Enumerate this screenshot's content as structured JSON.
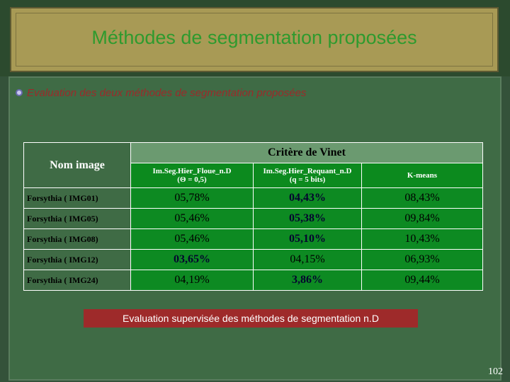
{
  "slide": {
    "title": "Méthodes de segmentation proposées",
    "bullet": "Evaluation des deux méthodes de segmentation proposées",
    "caption": "Evaluation  supervisée des méthodes de segmentation n.D",
    "page_number": "102"
  },
  "table": {
    "col_name_header": "Nom image",
    "group_header": "Critère de Vinet",
    "methods": [
      {
        "line1": "Im.Seg.Hier_Floue_n.D",
        "line2": "(Θ = 0,5)"
      },
      {
        "line1": "Im.Seg.Hier_Requant_n.D",
        "line2": "(q = 5 bits)"
      },
      {
        "line1": "K-means",
        "line2": ""
      }
    ],
    "rows": [
      {
        "name": "Forsythia ( IMG01)",
        "v": [
          "05,78%",
          "04,43%",
          "08,43%"
        ]
      },
      {
        "name": "Forsythia ( IMG05)",
        "v": [
          "05,46%",
          "05,38%",
          "09,84%"
        ]
      },
      {
        "name": "Forsythia ( IMG08)",
        "v": [
          "05,46%",
          "05,10%",
          "10,43%"
        ]
      },
      {
        "name": "Forsythia ( IMG12)",
        "v": [
          "03,65%",
          "04,15%",
          "06,93%"
        ]
      },
      {
        "name": "Forsythia ( IMG24)",
        "v": [
          "04,19%",
          "3,86%",
          "09,44%"
        ]
      }
    ]
  }
}
